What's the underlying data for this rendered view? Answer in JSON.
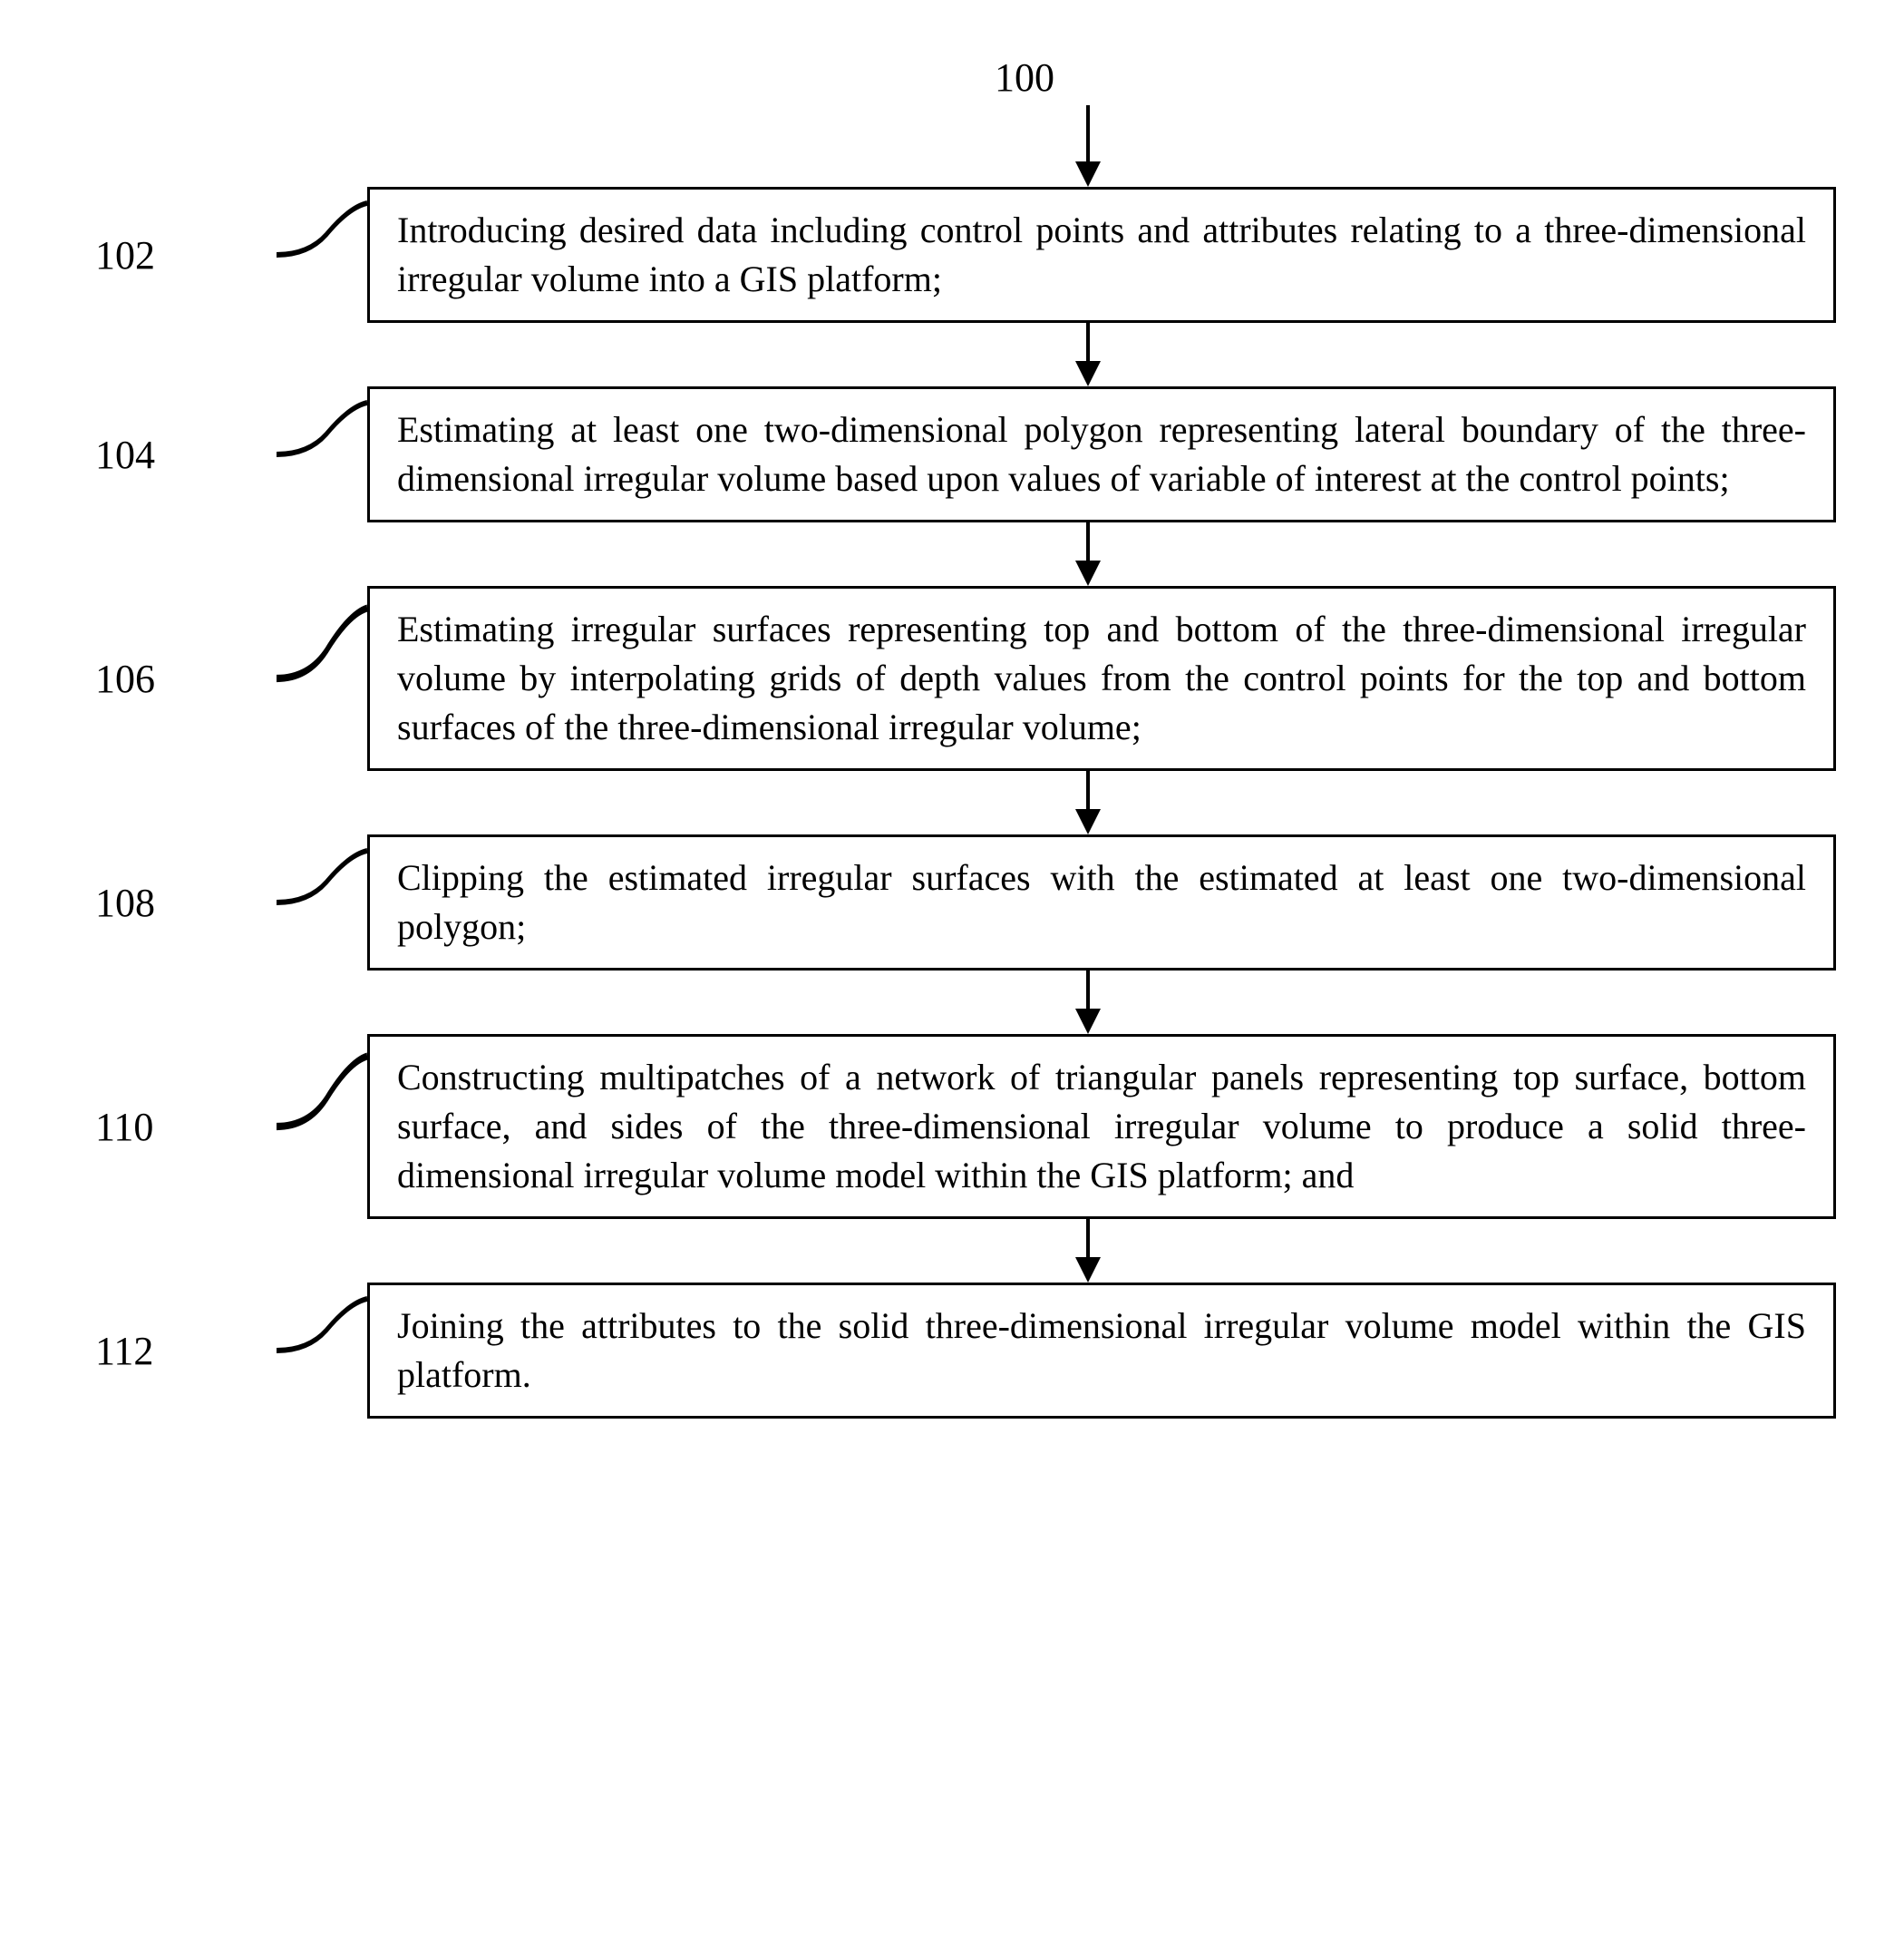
{
  "type": "flowchart",
  "title": "100",
  "background_color": "#ffffff",
  "box_border_color": "#000000",
  "box_border_width": 3,
  "text_color": "#000000",
  "font_family": "Times New Roman",
  "title_fontsize": 44,
  "label_fontsize": 44,
  "step_fontsize": 40,
  "arrow_color": "#000000",
  "arrow_stroke_width": 4,
  "arrow_gap_height": 70,
  "top_arrow_height": 90,
  "connector_width": 100,
  "label_width": 200,
  "box_max_width": 1600,
  "steps": [
    {
      "label": "102",
      "text": "Introducing desired data including control points and attributes relating to a three-dimensional irregular volume into a GIS platform;"
    },
    {
      "label": "104",
      "text": "Estimating at least one two-dimensional polygon representing lateral boundary of the three-dimensional irregular volume based upon values of variable of interest at the control points;"
    },
    {
      "label": "106",
      "text": "Estimating irregular surfaces representing top and bottom of the three-dimensional irregular volume by interpolating grids of depth values from the control points for the top and bottom surfaces of the three-dimensional irregular volume;"
    },
    {
      "label": "108",
      "text": "Clipping the estimated irregular surfaces with the estimated at least one two-dimensional polygon;"
    },
    {
      "label": "110",
      "text": "Constructing multipatches of a network of triangular panels representing top surface, bottom surface, and sides of the three-dimensional irregular volume to produce a solid three-dimensional irregular volume model within the GIS platform; and"
    },
    {
      "label": "112",
      "text": "Joining the attributes to the solid three-dimensional irregular volume model within the GIS platform."
    }
  ]
}
